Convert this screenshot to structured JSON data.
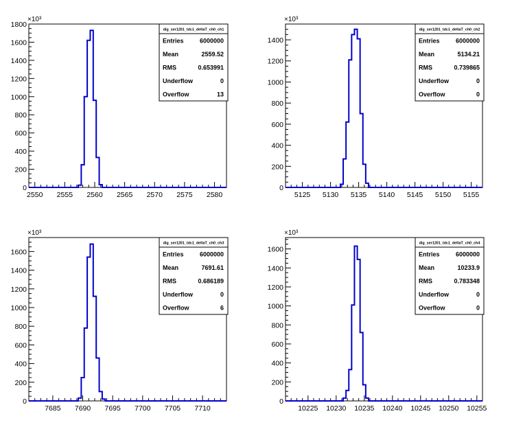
{
  "chart_data": [
    {
      "type": "bar",
      "style": "step histogram",
      "name": "dig_ser1201_tdc1_deltaT_ch0_ch1",
      "exponent_label": "×10³",
      "xlim": [
        2549,
        2582
      ],
      "ylim": [
        0,
        1800
      ],
      "xticks": [
        2550,
        2555,
        2560,
        2565,
        2570,
        2575,
        2580
      ],
      "yticks": [
        0,
        200,
        400,
        600,
        800,
        1000,
        1200,
        1400,
        1600,
        1800
      ],
      "bin_width": 0.5,
      "bins": [
        {
          "x": 2557.5,
          "y": 25
        },
        {
          "x": 2558.0,
          "y": 250
        },
        {
          "x": 2558.5,
          "y": 1000
        },
        {
          "x": 2559.0,
          "y": 1620
        },
        {
          "x": 2559.5,
          "y": 1730
        },
        {
          "x": 2560.0,
          "y": 960
        },
        {
          "x": 2560.5,
          "y": 330
        },
        {
          "x": 2561.0,
          "y": 30
        }
      ],
      "stats": [
        {
          "label": "Entries",
          "value": "6000000"
        },
        {
          "label": "Mean",
          "value": "2559.52"
        },
        {
          "label": "RMS",
          "value": "0.653991"
        },
        {
          "label": "Underflow",
          "value": "0"
        },
        {
          "label": "Overflow",
          "value": "13"
        }
      ]
    },
    {
      "type": "bar",
      "style": "step histogram",
      "name": "dig_ser1201_tdc1_deltaT_ch0_ch2",
      "exponent_label": "×10³",
      "xlim": [
        5122,
        5157
      ],
      "ylim": [
        0,
        1550
      ],
      "xticks": [
        5125,
        5130,
        5135,
        5140,
        5145,
        5150,
        5155
      ],
      "yticks": [
        0,
        200,
        400,
        600,
        800,
        1000,
        1200,
        1400
      ],
      "bin_width": 0.5,
      "bins": [
        {
          "x": 5132.0,
          "y": 30
        },
        {
          "x": 5132.5,
          "y": 270
        },
        {
          "x": 5133.0,
          "y": 620
        },
        {
          "x": 5133.5,
          "y": 1210
        },
        {
          "x": 5134.0,
          "y": 1450
        },
        {
          "x": 5134.5,
          "y": 1500
        },
        {
          "x": 5135.0,
          "y": 1410
        },
        {
          "x": 5135.5,
          "y": 700
        },
        {
          "x": 5136.0,
          "y": 220
        },
        {
          "x": 5136.5,
          "y": 40
        }
      ],
      "stats": [
        {
          "label": "Entries",
          "value": "6000000"
        },
        {
          "label": "Mean",
          "value": "5134.21"
        },
        {
          "label": "RMS",
          "value": "0.739865"
        },
        {
          "label": "Underflow",
          "value": "0"
        },
        {
          "label": "Overflow",
          "value": "0"
        }
      ]
    },
    {
      "type": "bar",
      "style": "step histogram",
      "name": "dig_ser1201_tdc1_deltaT_ch0_ch3",
      "exponent_label": "×10³",
      "xlim": [
        7681,
        7714
      ],
      "ylim": [
        0,
        1750
      ],
      "xticks": [
        7685,
        7690,
        7695,
        7700,
        7705,
        7710
      ],
      "yticks": [
        0,
        200,
        400,
        600,
        800,
        1000,
        1200,
        1400,
        1600
      ],
      "bin_width": 0.5,
      "bins": [
        {
          "x": 7689.5,
          "y": 30
        },
        {
          "x": 7690.0,
          "y": 250
        },
        {
          "x": 7690.5,
          "y": 780
        },
        {
          "x": 7691.0,
          "y": 1540
        },
        {
          "x": 7691.5,
          "y": 1680
        },
        {
          "x": 7692.0,
          "y": 1120
        },
        {
          "x": 7692.5,
          "y": 460
        },
        {
          "x": 7693.0,
          "y": 100
        },
        {
          "x": 7693.5,
          "y": 20
        }
      ],
      "stats": [
        {
          "label": "Entries",
          "value": "6000000"
        },
        {
          "label": "Mean",
          "value": "7691.61"
        },
        {
          "label": "RMS",
          "value": "0.686189"
        },
        {
          "label": "Underflow",
          "value": "0"
        },
        {
          "label": "Overflow",
          "value": "6"
        }
      ]
    },
    {
      "type": "bar",
      "style": "step histogram",
      "name": "dig_ser1201_tdc1_deltaT_ch0_ch4",
      "exponent_label": "×10³",
      "xlim": [
        10221,
        10256
      ],
      "ylim": [
        0,
        1720
      ],
      "xticks": [
        10225,
        10230,
        10235,
        10240,
        10245,
        10250,
        10255
      ],
      "yticks": [
        0,
        200,
        400,
        600,
        800,
        1000,
        1200,
        1400,
        1600
      ],
      "bin_width": 0.5,
      "bins": [
        {
          "x": 10231.5,
          "y": 30
        },
        {
          "x": 10232.0,
          "y": 110
        },
        {
          "x": 10232.5,
          "y": 330
        },
        {
          "x": 10233.0,
          "y": 1010
        },
        {
          "x": 10233.5,
          "y": 1630
        },
        {
          "x": 10234.0,
          "y": 1490
        },
        {
          "x": 10234.5,
          "y": 720
        },
        {
          "x": 10235.0,
          "y": 170
        },
        {
          "x": 10235.5,
          "y": 30
        }
      ],
      "stats": [
        {
          "label": "Entries",
          "value": "6000000"
        },
        {
          "label": "Mean",
          "value": "10233.9"
        },
        {
          "label": "RMS",
          "value": "0.783348"
        },
        {
          "label": "Underflow",
          "value": "0"
        },
        {
          "label": "Overflow",
          "value": "0"
        }
      ]
    }
  ],
  "colors": {
    "histogram_line": "#0000cc",
    "axis": "#000000",
    "background": "#ffffff"
  }
}
